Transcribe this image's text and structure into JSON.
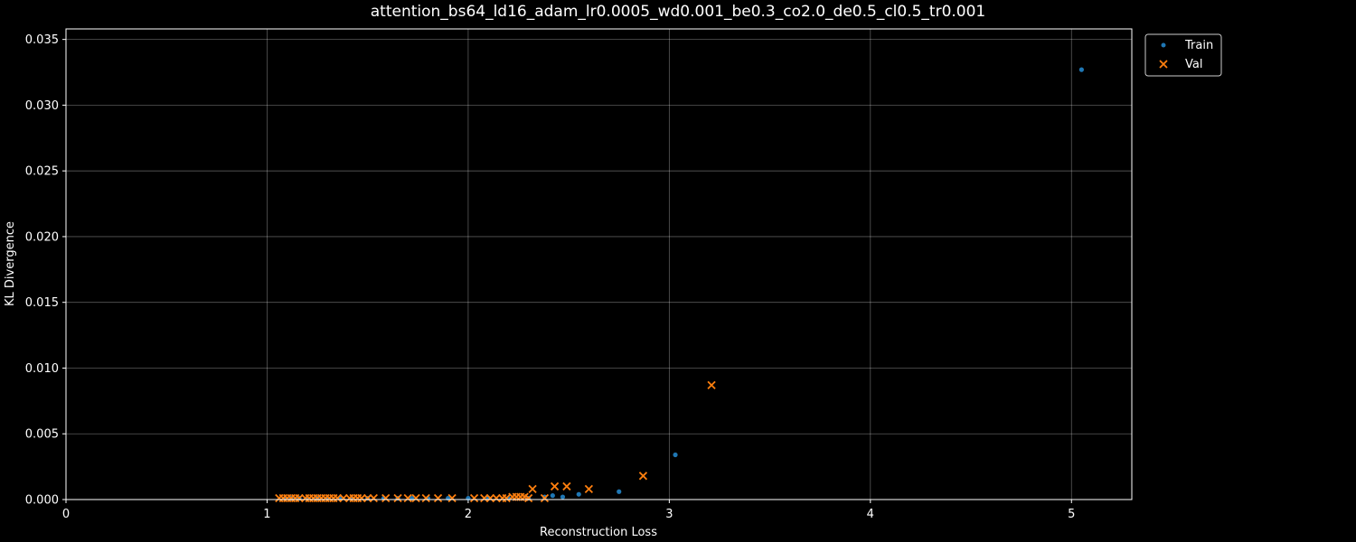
{
  "chart_data": {
    "type": "scatter",
    "title": "attention_bs64_ld16_adam_lr0.0005_wd0.001_be0.3_co2.0_de0.5_cl0.5_tr0.001",
    "xlabel": "Reconstruction Loss",
    "ylabel": "KL Divergence",
    "xlim": [
      0,
      5.3
    ],
    "ylim": [
      0,
      0.0358
    ],
    "x_ticks": [
      0,
      1,
      2,
      3,
      4,
      5
    ],
    "x_tick_labels": [
      "0",
      "1",
      "2",
      "3",
      "4",
      "5"
    ],
    "y_ticks": [
      0,
      0.005,
      0.01,
      0.015,
      0.02,
      0.025,
      0.03,
      0.035
    ],
    "y_tick_labels": [
      "0.000",
      "0.005",
      "0.010",
      "0.015",
      "0.020",
      "0.025",
      "0.030",
      "0.035"
    ],
    "grid": true,
    "legend_position": "outside-top-right",
    "series": [
      {
        "name": "Train",
        "marker": "dot",
        "color": "#1f77b4",
        "x": [
          1.09,
          1.12,
          1.16,
          1.2,
          1.25,
          1.3,
          1.36,
          1.42,
          1.5,
          1.58,
          1.65,
          1.72,
          1.8,
          1.9,
          2.0,
          2.1,
          2.2,
          2.3,
          2.38,
          2.42,
          2.47,
          2.55,
          2.75,
          3.03,
          5.05
        ],
        "y": [
          0.0001,
          0.0001,
          0.0001,
          0.0001,
          0.0001,
          0.0001,
          0.0001,
          0.0001,
          0.0001,
          0.0001,
          0.0001,
          0.0001,
          0.0001,
          0.0001,
          0.0001,
          0.0001,
          0.0001,
          0.0001,
          0.0002,
          0.0003,
          0.0002,
          0.0004,
          0.0006,
          0.0034,
          0.0327
        ]
      },
      {
        "name": "Val",
        "marker": "x",
        "color": "#ff7f0e",
        "x": [
          1.06,
          1.08,
          1.1,
          1.12,
          1.14,
          1.16,
          1.19,
          1.21,
          1.23,
          1.25,
          1.27,
          1.29,
          1.31,
          1.33,
          1.35,
          1.38,
          1.41,
          1.43,
          1.45,
          1.47,
          1.5,
          1.53,
          1.59,
          1.65,
          1.7,
          1.74,
          1.79,
          1.85,
          1.92,
          2.03,
          2.08,
          2.11,
          2.14,
          2.17,
          2.19,
          2.22,
          2.24,
          2.26,
          2.28,
          2.3,
          2.32,
          2.38,
          2.43,
          2.49,
          2.6,
          2.87,
          3.21
        ],
        "y": [
          0.0001,
          0.0001,
          0.0001,
          0.0001,
          0.0001,
          0.0001,
          0.0001,
          0.0001,
          0.0001,
          0.0001,
          0.0001,
          0.0001,
          0.0001,
          0.0001,
          0.0001,
          0.0001,
          0.0001,
          0.0001,
          0.0001,
          0.0001,
          0.0001,
          0.0001,
          0.0001,
          0.0001,
          0.0001,
          0.0001,
          0.0001,
          0.0001,
          0.0001,
          0.0001,
          0.0001,
          0.0001,
          0.0001,
          0.0001,
          0.0001,
          0.0002,
          0.0002,
          0.0002,
          0.0002,
          0.0001,
          0.0008,
          0.0001,
          0.001,
          0.001,
          0.0008,
          0.0018,
          0.0087
        ]
      }
    ]
  }
}
